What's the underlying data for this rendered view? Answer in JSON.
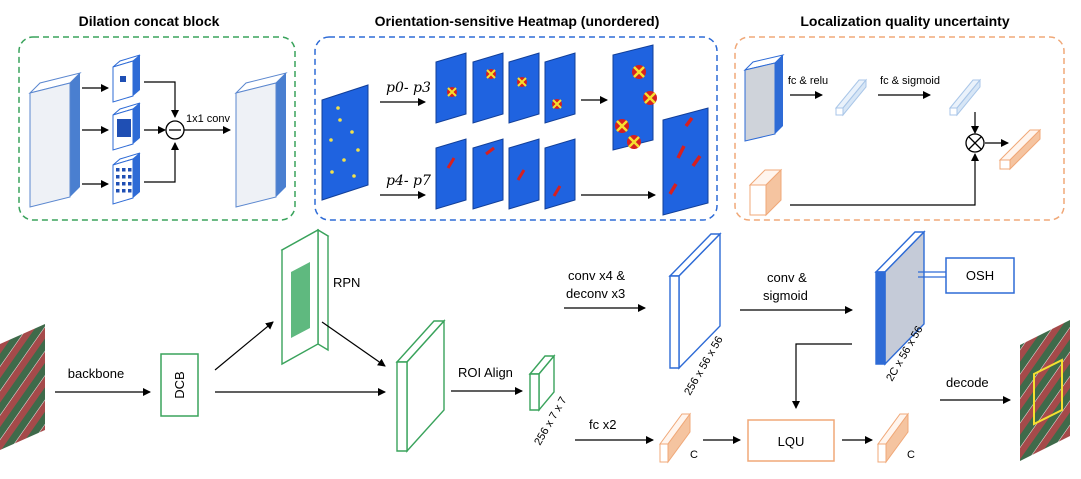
{
  "panels": {
    "dilation": {
      "title": "Dilation concat block",
      "conv_label": "1x1 conv"
    },
    "heatmap": {
      "title": "Orientation-sensitive Heatmap (unordered)",
      "top_label": "p0- p3",
      "bottom_label": "p4- p7"
    },
    "lqu_panel": {
      "title": "Localization quality uncertainty",
      "fc_relu": "fc & relu",
      "fc_sigmoid": "fc & sigmoid"
    }
  },
  "pipeline": {
    "backbone": "backbone",
    "dcb": "DCB",
    "rpn": "RPN",
    "roi_align": "ROI Align",
    "roi_dims": "256 x 7 x 7",
    "fc": "fc x2",
    "c1": "C",
    "c2": "C",
    "lqu": "LQU",
    "conv_deconv_1": "conv x4 &",
    "conv_deconv_2": "deconv x3",
    "feat_dims": "256 x 56 x 56",
    "conv_sig_1": "conv &",
    "conv_sig_2": "sigmoid",
    "osh_dims": "2C x 56 x 56",
    "osh": "OSH",
    "decode": "decode"
  },
  "colors": {
    "green": "#3aa35c",
    "blue": "#2e6bd6",
    "orange": "#f0a878",
    "light_blue": "#a9c6e8",
    "heat_blue": "#1f63e0"
  }
}
